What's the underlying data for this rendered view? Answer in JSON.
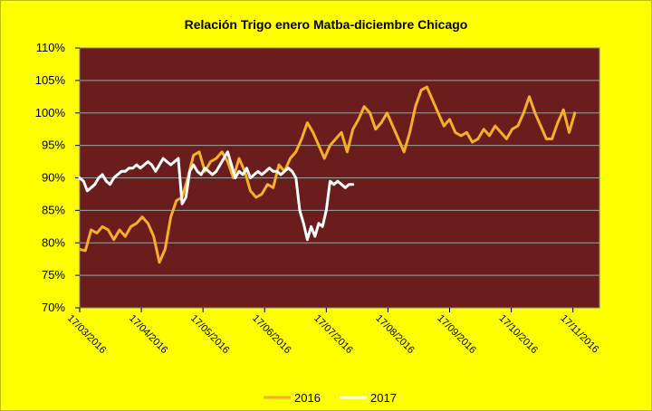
{
  "colors": {
    "background": "#ffff00",
    "plot_area": "#6b1d1d",
    "grid": "#a0a0a0",
    "series_2016": "#f5b027",
    "series_2017": "#ffffff"
  },
  "chart_data": {
    "type": "line",
    "title": "Relación Trigo enero Matba-diciembre Chicago",
    "xlabel": "",
    "ylabel": "",
    "ylim": [
      70,
      110
    ],
    "y_ticks": [
      "70%",
      "75%",
      "80%",
      "85%",
      "90%",
      "95%",
      "100%",
      "105%",
      "110%"
    ],
    "x_ticks": [
      "17/03/2016",
      "17/04/2016",
      "17/05/2016",
      "17/06/2016",
      "17/07/2016",
      "17/08/2016",
      "17/09/2016",
      "17/10/2016",
      "17/11/2016"
    ],
    "grid": true,
    "legend_position": "bottom",
    "series": [
      {
        "name": "2016",
        "x": [
          0,
          3,
          6,
          9,
          12,
          15,
          18,
          21,
          24,
          27,
          30,
          33,
          36,
          39,
          42,
          45,
          48,
          51,
          54,
          57,
          60,
          63,
          66,
          69,
          72,
          75,
          78,
          81,
          84,
          87,
          90,
          93,
          96,
          99,
          102,
          105,
          108,
          111,
          114,
          117,
          120,
          123,
          126,
          129,
          132,
          135,
          138,
          141,
          144,
          147,
          150,
          153,
          156,
          159,
          162,
          165,
          168,
          171,
          174,
          177,
          180,
          183,
          186,
          189,
          192,
          195,
          198,
          201,
          204,
          207,
          210,
          213,
          216,
          219,
          222,
          225,
          228,
          231,
          234,
          237,
          240,
          243,
          246,
          249,
          252,
          255,
          258,
          261
        ],
        "values": [
          79.0,
          78.8,
          82.0,
          81.5,
          82.5,
          82.0,
          80.5,
          82.0,
          81.0,
          82.5,
          83.0,
          84.0,
          83.0,
          81.0,
          77.0,
          79.0,
          84.0,
          86.5,
          87.0,
          90.0,
          93.5,
          94.0,
          91.0,
          92.5,
          93.0,
          94.0,
          92.5,
          90.0,
          93.0,
          91.0,
          88.0,
          87.0,
          87.5,
          89.0,
          88.5,
          92.0,
          91.0,
          93.0,
          94.0,
          96.0,
          98.5,
          97.0,
          95.0,
          93.0,
          95.0,
          96.0,
          97.0,
          94.0,
          97.5,
          99.0,
          101.0,
          100.0,
          97.5,
          98.5,
          100.0,
          98.0,
          96.0,
          94.0,
          97.0,
          101.0,
          103.5,
          104.0,
          102.0,
          100.0,
          98.0,
          99.0,
          97.0,
          96.5,
          97.0,
          95.5,
          96.0,
          97.5,
          96.5,
          98.0,
          97.0,
          96.0,
          97.5,
          98.0,
          100.0,
          102.5,
          100.0,
          98.0,
          96.0,
          96.0,
          98.5,
          100.5,
          97.0,
          100.0
        ]
      },
      {
        "name": "2017",
        "x": [
          0,
          2,
          4,
          6,
          8,
          10,
          12,
          14,
          16,
          18,
          20,
          22,
          24,
          26,
          28,
          30,
          32,
          34,
          36,
          38,
          40,
          42,
          44,
          46,
          48,
          50,
          52,
          54,
          56,
          58,
          60,
          62,
          64,
          66,
          68,
          70,
          72,
          74,
          76,
          78,
          80,
          82,
          84,
          86,
          88,
          90,
          92,
          94,
          96,
          98,
          100,
          102,
          104,
          106,
          108,
          110,
          112,
          114,
          116,
          118,
          120,
          122,
          124,
          126,
          128,
          130,
          132,
          134,
          136,
          138,
          140,
          142,
          144
        ],
        "values": [
          90.0,
          89.5,
          88.0,
          88.5,
          89.0,
          90.0,
          90.5,
          89.5,
          89.0,
          90.0,
          90.5,
          91.0,
          91.0,
          91.5,
          91.5,
          92.0,
          91.5,
          92.0,
          92.5,
          92.0,
          91.0,
          92.0,
          93.0,
          92.5,
          92.0,
          92.5,
          93.0,
          86.0,
          87.0,
          91.0,
          92.0,
          91.0,
          90.5,
          91.5,
          91.0,
          90.5,
          91.0,
          92.0,
          93.0,
          94.0,
          92.0,
          90.0,
          91.0,
          90.5,
          91.5,
          90.0,
          90.5,
          91.0,
          90.5,
          91.0,
          91.5,
          91.0,
          91.0,
          90.5,
          91.0,
          91.5,
          91.0,
          90.0,
          85.0,
          83.0,
          80.5,
          82.5,
          81.0,
          83.0,
          82.5,
          85.0,
          89.5,
          89.0,
          89.5,
          89.0,
          88.5,
          89.0,
          89.0
        ],
        "x_scale_note": ""
      }
    ]
  }
}
